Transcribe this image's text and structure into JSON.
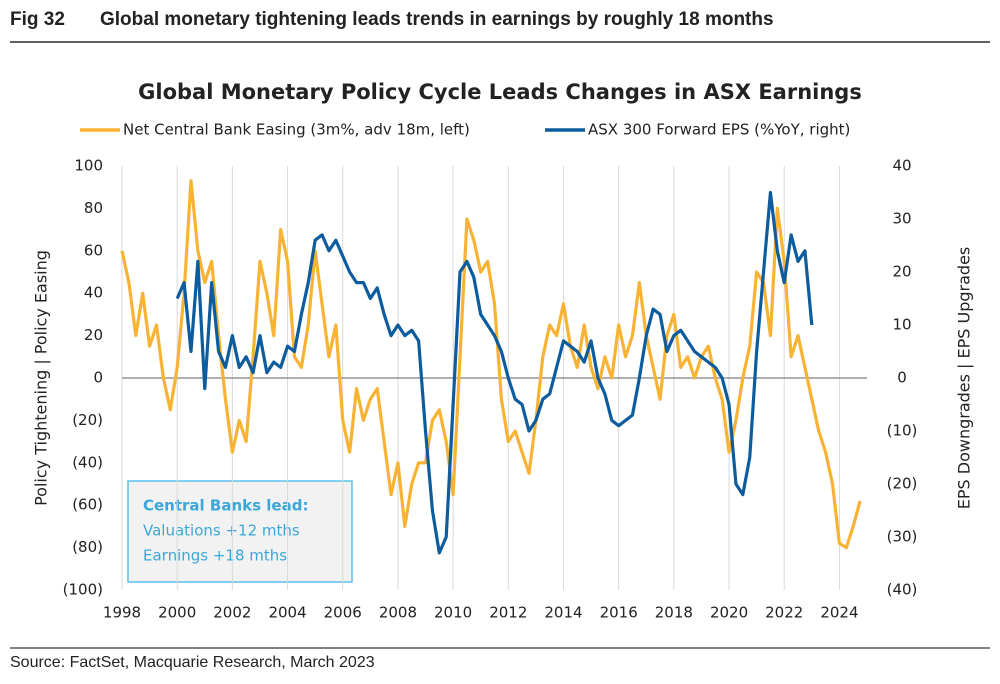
{
  "figure": {
    "label": "Fig 32",
    "title": "Global monetary tightening leads trends in earnings by roughly 18 months"
  },
  "source": "Source: FactSet, Macquarie Research, March 2023",
  "chart_data": {
    "type": "line",
    "title": "Global Monetary Policy Cycle Leads Changes in ASX Earnings",
    "y_label": "Policy Tightening  |  Policy Easing",
    "y2_label": "EPS Downgrades  |  EPS Upgrades",
    "annotation": [
      "Central Banks lead:",
      "Valuations +12 mths",
      "Earnings +18 mths"
    ],
    "legend": "top",
    "grid": "x",
    "zero_line": true,
    "xlim": [
      1998,
      2025
    ],
    "xticks": [
      1998,
      2000,
      2002,
      2004,
      2006,
      2008,
      2010,
      2012,
      2014,
      2016,
      2018,
      2020,
      2022,
      2024
    ],
    "ylim": [
      -100,
      100
    ],
    "yticks": [
      100,
      80,
      60,
      40,
      20,
      0,
      {
        "value": -20,
        "label": "(20)"
      },
      {
        "value": -40,
        "label": "(40)"
      },
      {
        "value": -60,
        "label": "(60)"
      },
      {
        "value": -80,
        "label": "(80)"
      },
      {
        "value": -100,
        "label": "(100)"
      }
    ],
    "y2lim": [
      -40,
      40
    ],
    "y2ticks": [
      40,
      30,
      20,
      10,
      0,
      {
        "value": -10,
        "label": "(10)"
      },
      {
        "value": -20,
        "label": "(20)"
      },
      {
        "value": -30,
        "label": "(30)"
      },
      {
        "value": -40,
        "label": "(40)"
      }
    ],
    "x": [
      1998,
      1998.25,
      1998.5,
      1998.75,
      1999,
      1999.25,
      1999.5,
      1999.75,
      2000,
      2000.25,
      2000.5,
      2000.75,
      2001,
      2001.25,
      2001.5,
      2001.75,
      2002,
      2002.25,
      2002.5,
      2002.75,
      2003,
      2003.25,
      2003.5,
      2003.75,
      2004,
      2004.25,
      2004.5,
      2004.75,
      2005,
      2005.25,
      2005.5,
      2005.75,
      2006,
      2006.25,
      2006.5,
      2006.75,
      2007,
      2007.25,
      2007.5,
      2007.75,
      2008,
      2008.25,
      2008.5,
      2008.75,
      2009,
      2009.25,
      2009.5,
      2009.75,
      2010,
      2010.25,
      2010.5,
      2010.75,
      2011,
      2011.25,
      2011.5,
      2011.75,
      2012,
      2012.25,
      2012.5,
      2012.75,
      2013,
      2013.25,
      2013.5,
      2013.75,
      2014,
      2014.25,
      2014.5,
      2014.75,
      2015,
      2015.25,
      2015.5,
      2015.75,
      2016,
      2016.25,
      2016.5,
      2016.75,
      2017,
      2017.25,
      2017.5,
      2017.75,
      2018,
      2018.25,
      2018.5,
      2018.75,
      2019,
      2019.25,
      2019.5,
      2019.75,
      2020,
      2020.25,
      2020.5,
      2020.75,
      2021,
      2021.25,
      2021.5,
      2021.75,
      2022,
      2022.25,
      2022.5,
      2022.75,
      2023,
      2023.25,
      2023.5,
      2023.75,
      2024,
      2024.25,
      2024.5,
      2024.75
    ],
    "series": [
      {
        "name": "Net Central Bank Easing (3m%, adv 18m, left)",
        "color": "#f8b334",
        "values": [
          60,
          45,
          20,
          40,
          15,
          25,
          0,
          -15,
          5,
          40,
          93,
          60,
          45,
          55,
          20,
          -10,
          -35,
          -20,
          -30,
          10,
          55,
          40,
          20,
          70,
          55,
          10,
          5,
          25,
          60,
          35,
          10,
          25,
          -20,
          -35,
          -5,
          -20,
          -10,
          -5,
          -30,
          -55,
          -40,
          -70,
          -50,
          -40,
          -40,
          -20,
          -15,
          -30,
          -55,
          10,
          75,
          65,
          50,
          55,
          35,
          -10,
          -30,
          -25,
          -35,
          -45,
          -20,
          10,
          25,
          20,
          35,
          15,
          5,
          25,
          5,
          -5,
          10,
          0,
          25,
          10,
          20,
          45,
          20,
          5,
          -10,
          20,
          30,
          5,
          10,
          0,
          10,
          15,
          0,
          -10,
          -35,
          -20,
          0,
          15,
          50,
          45,
          20,
          80,
          55,
          10,
          20,
          5,
          -10,
          -25,
          -35,
          -50,
          -78,
          -80,
          -70,
          -58
        ]
      },
      {
        "name": "ASX 300 Forward EPS (%YoY, right)",
        "color": "#0d5c9e",
        "axis": "y2",
        "values": [
          null,
          null,
          null,
          null,
          null,
          null,
          null,
          null,
          15,
          18,
          5,
          22,
          -2,
          18,
          5,
          2,
          8,
          2,
          4,
          1,
          8,
          1,
          3,
          2,
          6,
          5,
          12,
          18,
          26,
          27,
          24,
          26,
          23,
          20,
          18,
          18,
          15,
          17,
          12,
          8,
          10,
          8,
          9,
          7,
          -10,
          -25,
          -33,
          -30,
          -5,
          20,
          22,
          19,
          12,
          10,
          8,
          5,
          0,
          -4,
          -5,
          -10,
          -8,
          -4,
          -3,
          2,
          7,
          6,
          5,
          3,
          7,
          0,
          -3,
          -8,
          -9,
          -8,
          -7,
          0,
          8,
          13,
          12,
          5,
          8,
          9,
          7,
          5,
          4,
          3,
          2,
          0,
          -5,
          -20,
          -22,
          -15,
          5,
          20,
          35,
          24,
          18,
          27,
          22,
          24,
          10,
          null,
          null,
          null,
          null,
          null,
          null,
          null
        ]
      }
    ]
  }
}
